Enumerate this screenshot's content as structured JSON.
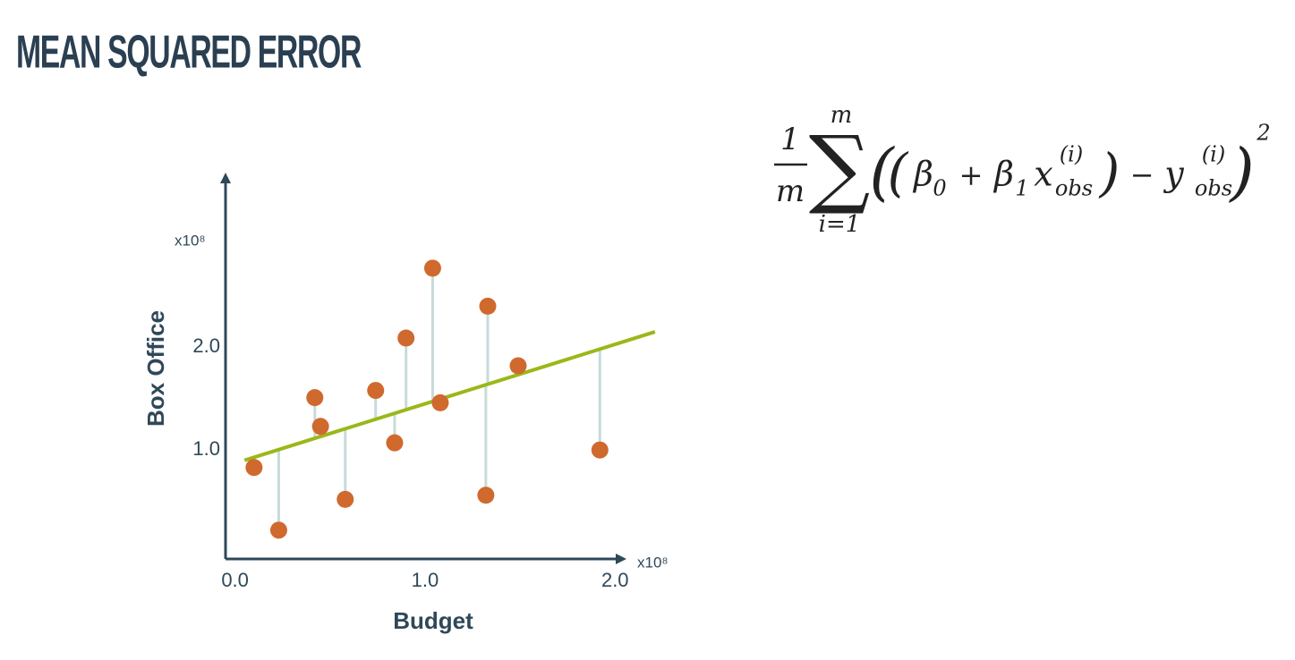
{
  "slide": {
    "title": "MEAN SQUARED ERROR"
  },
  "formula": {
    "numerator": "1",
    "denominator": "m",
    "sum": "∑",
    "upper": "m",
    "lower": "i=1",
    "parts": [
      "(",
      "(",
      "β",
      "0",
      "+",
      "β",
      "1",
      "x",
      "(i)",
      "obs",
      ")",
      "−",
      "y",
      "(i)",
      "obs",
      ")",
      "2"
    ]
  },
  "chart_data": {
    "type": "scatter",
    "x_label": "Budget",
    "y_label": "Box Office",
    "x_multiplier": "x10⁸",
    "y_multiplier": "x10⁸",
    "x": [
      0.1,
      0.23,
      0.42,
      0.45,
      0.58,
      0.74,
      0.84,
      0.9,
      1.04,
      1.08,
      1.33,
      1.32,
      1.49,
      1.92
    ],
    "values": [
      0.83,
      0.22,
      1.51,
      1.23,
      0.52,
      1.58,
      1.07,
      2.09,
      2.77,
      1.46,
      2.4,
      0.56,
      1.82,
      1.0
    ],
    "color": "#d0692e",
    "fit_line": {
      "x": [
        0.05,
        2.21
      ],
      "y": [
        0.9,
        2.15
      ],
      "color": "#9ab819"
    },
    "residual_color": "#c8dada",
    "xlim": [
      -0.05,
      2.06
    ],
    "ylim": [
      -0.06,
      3.7
    ],
    "xticks": [
      {
        "value": 0,
        "label": "0.0"
      },
      {
        "value": 1,
        "label": "1.0"
      },
      {
        "value": 2,
        "label": "2.0"
      }
    ],
    "yticks": [
      {
        "value": 1,
        "label": "1.0"
      },
      {
        "value": 2,
        "label": "2.0"
      }
    ],
    "grid": false
  }
}
